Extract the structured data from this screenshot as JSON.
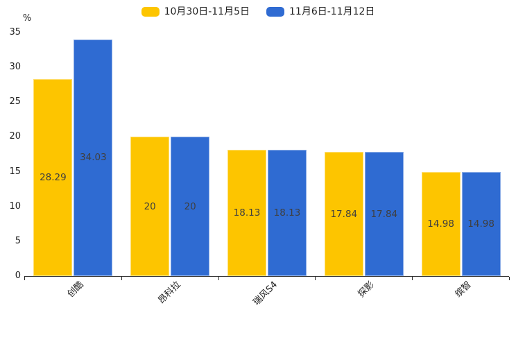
{
  "legend": {
    "items": [
      {
        "label": "10月30日-11月5日",
        "color": "#FDC500"
      },
      {
        "label": "11月6日-11月12日",
        "color": "#2F6BD2"
      }
    ]
  },
  "chart_data": {
    "type": "bar",
    "title": "",
    "unit": "%",
    "categories": [
      "创酷",
      "昂科拉",
      "瑞风S4",
      "探影",
      "缤智"
    ],
    "series": [
      {
        "name": "10月30日-11月5日",
        "color": "#FDC500",
        "values": [
          28.29,
          20,
          18.13,
          17.84,
          14.98
        ],
        "labels": [
          "28.29",
          "20",
          "18.13",
          "17.84",
          "14.98"
        ]
      },
      {
        "name": "11月6日-11月12日",
        "color": "#2F6BD2",
        "values": [
          34.03,
          20,
          18.13,
          17.84,
          14.98
        ],
        "labels": [
          "34.03",
          "20",
          "18.13",
          "17.84",
          "14.98"
        ]
      }
    ],
    "y_ticks": [
      0,
      5,
      10,
      15,
      20,
      25,
      30,
      35
    ],
    "ylim": [
      0,
      35
    ],
    "grid": false,
    "legend_position": "top-center",
    "value_label_position": "inside-center",
    "value_label_color": "#3F3F3F",
    "axis_color": "#2B2B2B",
    "x_label_rotation_deg": 45
  }
}
